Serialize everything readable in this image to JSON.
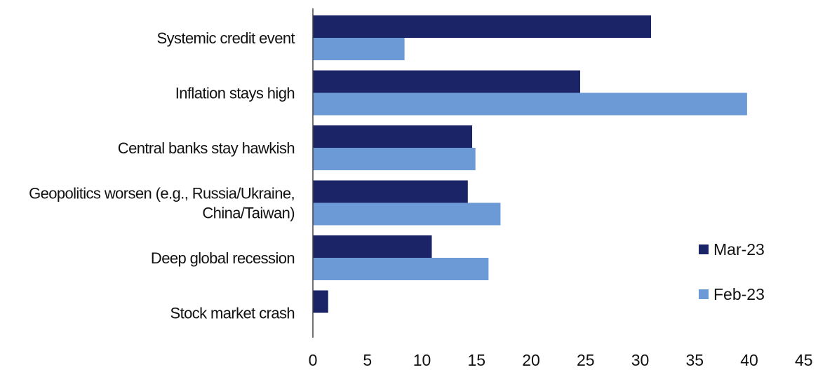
{
  "chart_data": {
    "type": "bar",
    "orientation": "horizontal",
    "categories": [
      "Systemic credit event",
      "Inflation stays high",
      "Central banks stay hawkish",
      "Geopolitics worsen (e.g., Russia/Ukraine, China/Taiwan)",
      "Deep global recession",
      "Stock market crash"
    ],
    "category_lines": [
      [
        "Systemic credit event"
      ],
      [
        "Inflation stays high"
      ],
      [
        "Central banks stay hawkish"
      ],
      [
        "Geopolitics worsen (e.g., Russia/Ukraine,",
        "China/Taiwan)"
      ],
      [
        "Deep global recession"
      ],
      [
        "Stock market crash"
      ]
    ],
    "series": [
      {
        "name": "Mar-23",
        "color": "#1b2466",
        "values": [
          31,
          24.5,
          14.6,
          14.2,
          10.9,
          1.4
        ]
      },
      {
        "name": "Feb-23",
        "color": "#6b9ad6",
        "values": [
          8.4,
          39.8,
          14.9,
          17.2,
          16.1,
          0
        ]
      }
    ],
    "xlim": [
      0,
      45
    ],
    "xticks": [
      0,
      5,
      10,
      15,
      20,
      25,
      30,
      35,
      40,
      45
    ],
    "title": "",
    "xlabel": "",
    "ylabel": "",
    "grid": false,
    "legend_position": "right"
  }
}
